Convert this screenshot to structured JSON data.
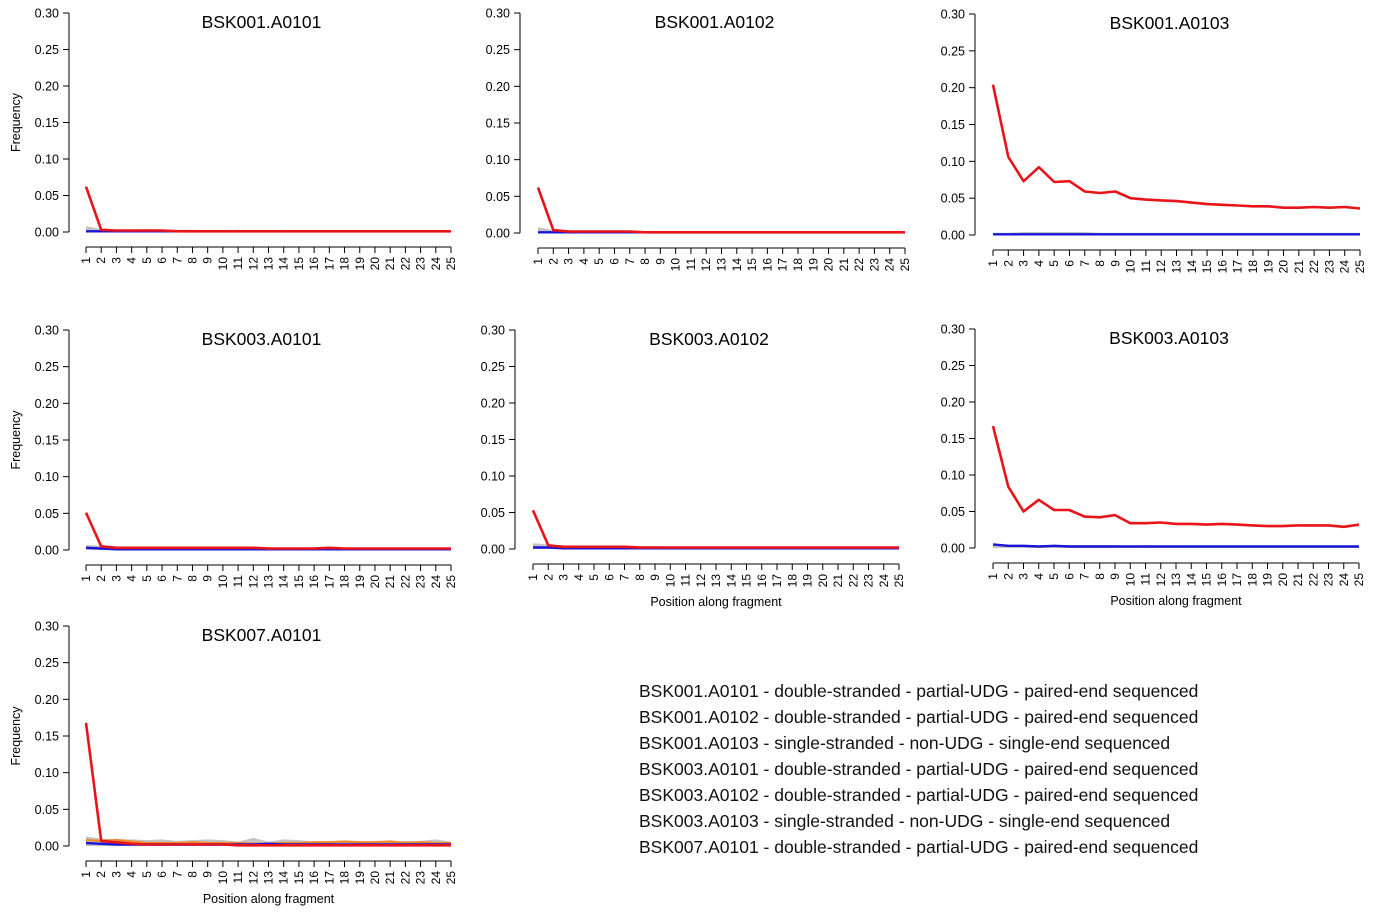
{
  "figure": {
    "ylabel": "Frequency",
    "xlabel": "Position along fragment",
    "colors": {
      "red_line": "#e8141a",
      "blue_line": "#1a14d8",
      "grey_band": "#b0b0b0",
      "orange_line": "#f08a2c",
      "purple_line": "#9b3fc0"
    }
  },
  "chart_data": [
    {
      "type": "line",
      "title": "BSK001.A0101",
      "ylabel": "Frequency",
      "xlabel": "",
      "ylim": [
        0,
        0.3
      ],
      "yticks": [
        "0.00",
        "0.05",
        "0.10",
        "0.15",
        "0.20",
        "0.25",
        "0.30"
      ],
      "x": [
        1,
        2,
        3,
        4,
        5,
        6,
        7,
        8,
        9,
        10,
        11,
        12,
        13,
        14,
        15,
        16,
        17,
        18,
        19,
        20,
        21,
        22,
        23,
        24,
        25
      ],
      "series": [
        {
          "color": "red",
          "values": [
            0.062,
            0.003,
            0.002,
            0.002,
            0.002,
            0.002,
            0.001,
            0.001,
            0.001,
            0.001,
            0.001,
            0.001,
            0.001,
            0.001,
            0.001,
            0.001,
            0.001,
            0.001,
            0.001,
            0.001,
            0.001,
            0.001,
            0.001,
            0.001,
            0.001
          ]
        },
        {
          "color": "blue",
          "values": [
            0.001,
            0.001,
            0.001,
            0.001,
            0.001,
            0.001,
            0.001,
            0.001,
            0.001,
            0.001,
            0.001,
            0.001,
            0.001,
            0.001,
            0.001,
            0.001,
            0.001,
            0.001,
            0.001,
            0.001,
            0.001,
            0.001,
            0.001,
            0.001,
            0.001
          ]
        },
        {
          "color": "grey",
          "band": true,
          "values": [
            0.008,
            0.004,
            0.003,
            0.003,
            0.004,
            0.003,
            0.003,
            0.003,
            0.002,
            0.002,
            0.003,
            0.002,
            0.002,
            0.003,
            0.002,
            0.002,
            0.002,
            0.002,
            0.002,
            0.002,
            0.002,
            0.002,
            0.002,
            0.002,
            0.002
          ]
        }
      ]
    },
    {
      "type": "line",
      "title": "BSK001.A0102",
      "ylabel": "",
      "xlabel": "",
      "ylim": [
        0,
        0.3
      ],
      "yticks": [
        "0.00",
        "0.05",
        "0.10",
        "0.15",
        "0.20",
        "0.25",
        "0.30"
      ],
      "x": [
        1,
        2,
        3,
        4,
        5,
        6,
        7,
        8,
        9,
        10,
        11,
        12,
        13,
        14,
        15,
        16,
        17,
        18,
        19,
        20,
        21,
        22,
        23,
        24,
        25
      ],
      "series": [
        {
          "color": "red",
          "values": [
            0.062,
            0.004,
            0.002,
            0.002,
            0.002,
            0.002,
            0.002,
            0.001,
            0.001,
            0.001,
            0.001,
            0.001,
            0.001,
            0.001,
            0.001,
            0.001,
            0.001,
            0.001,
            0.001,
            0.001,
            0.001,
            0.001,
            0.001,
            0.001,
            0.001
          ]
        },
        {
          "color": "blue",
          "values": [
            0.001,
            0.001,
            0.001,
            0.001,
            0.001,
            0.001,
            0.001,
            0.001,
            0.001,
            0.001,
            0.001,
            0.001,
            0.001,
            0.001,
            0.001,
            0.001,
            0.001,
            0.001,
            0.001,
            0.001,
            0.001,
            0.001,
            0.001,
            0.001,
            0.001
          ]
        },
        {
          "color": "grey",
          "band": true,
          "values": [
            0.008,
            0.004,
            0.003,
            0.003,
            0.003,
            0.003,
            0.003,
            0.002,
            0.002,
            0.002,
            0.002,
            0.002,
            0.002,
            0.002,
            0.002,
            0.002,
            0.002,
            0.002,
            0.002,
            0.002,
            0.002,
            0.002,
            0.002,
            0.002,
            0.002
          ]
        }
      ]
    },
    {
      "type": "line",
      "title": "BSK001.A0103",
      "ylabel": "",
      "xlabel": "",
      "ylim": [
        0,
        0.3
      ],
      "yticks": [
        "0.00",
        "0.05",
        "0.10",
        "0.15",
        "0.20",
        "0.25",
        "0.30"
      ],
      "x": [
        1,
        2,
        3,
        4,
        5,
        6,
        7,
        8,
        9,
        10,
        11,
        12,
        13,
        14,
        15,
        16,
        17,
        18,
        19,
        20,
        21,
        22,
        23,
        24,
        25
      ],
      "series": [
        {
          "color": "red",
          "values": [
            0.204,
            0.106,
            0.073,
            0.092,
            0.072,
            0.073,
            0.059,
            0.057,
            0.059,
            0.05,
            0.048,
            0.047,
            0.046,
            0.044,
            0.042,
            0.041,
            0.04,
            0.039,
            0.039,
            0.037,
            0.037,
            0.038,
            0.037,
            0.038,
            0.036
          ]
        },
        {
          "color": "blue",
          "values": [
            0.001,
            0.001,
            0.001,
            0.001,
            0.001,
            0.001,
            0.001,
            0.001,
            0.001,
            0.001,
            0.001,
            0.001,
            0.001,
            0.001,
            0.001,
            0.001,
            0.001,
            0.001,
            0.001,
            0.001,
            0.001,
            0.001,
            0.001,
            0.001,
            0.001
          ]
        },
        {
          "color": "grey",
          "band": true,
          "values": [
            0.003,
            0.003,
            0.004,
            0.004,
            0.004,
            0.004,
            0.004,
            0.003,
            0.003,
            0.003,
            0.003,
            0.003,
            0.003,
            0.003,
            0.003,
            0.003,
            0.003,
            0.003,
            0.003,
            0.003,
            0.003,
            0.003,
            0.003,
            0.003,
            0.003
          ]
        }
      ]
    },
    {
      "type": "line",
      "title": "BSK003.A0101",
      "ylabel": "Frequency",
      "xlabel": "",
      "ylim": [
        0,
        0.3
      ],
      "yticks": [
        "0.00",
        "0.05",
        "0.10",
        "0.15",
        "0.20",
        "0.25",
        "0.30"
      ],
      "x": [
        1,
        2,
        3,
        4,
        5,
        6,
        7,
        8,
        9,
        10,
        11,
        12,
        13,
        14,
        15,
        16,
        17,
        18,
        19,
        20,
        21,
        22,
        23,
        24,
        25
      ],
      "series": [
        {
          "color": "red",
          "values": [
            0.051,
            0.005,
            0.003,
            0.003,
            0.003,
            0.003,
            0.003,
            0.003,
            0.003,
            0.003,
            0.003,
            0.003,
            0.002,
            0.002,
            0.002,
            0.002,
            0.003,
            0.002,
            0.002,
            0.002,
            0.002,
            0.002,
            0.002,
            0.002,
            0.002
          ]
        },
        {
          "color": "blue",
          "values": [
            0.003,
            0.002,
            0.001,
            0.001,
            0.001,
            0.001,
            0.001,
            0.001,
            0.001,
            0.001,
            0.001,
            0.001,
            0.001,
            0.001,
            0.001,
            0.001,
            0.001,
            0.001,
            0.001,
            0.001,
            0.001,
            0.001,
            0.001,
            0.001,
            0.001
          ]
        },
        {
          "color": "grey",
          "band": true,
          "values": [
            0.007,
            0.006,
            0.005,
            0.004,
            0.004,
            0.004,
            0.004,
            0.004,
            0.004,
            0.004,
            0.004,
            0.003,
            0.003,
            0.003,
            0.003,
            0.003,
            0.003,
            0.003,
            0.003,
            0.003,
            0.003,
            0.003,
            0.003,
            0.003,
            0.003
          ]
        }
      ]
    },
    {
      "type": "line",
      "title": "BSK003.A0102",
      "ylabel": "",
      "xlabel": "Position along fragment",
      "ylim": [
        0,
        0.3
      ],
      "yticks": [
        "0.00",
        "0.05",
        "0.10",
        "0.15",
        "0.20",
        "0.25",
        "0.30"
      ],
      "x": [
        1,
        2,
        3,
        4,
        5,
        6,
        7,
        8,
        9,
        10,
        11,
        12,
        13,
        14,
        15,
        16,
        17,
        18,
        19,
        20,
        21,
        22,
        23,
        24,
        25
      ],
      "series": [
        {
          "color": "red",
          "values": [
            0.053,
            0.005,
            0.003,
            0.003,
            0.003,
            0.003,
            0.003,
            0.002,
            0.002,
            0.002,
            0.002,
            0.002,
            0.002,
            0.002,
            0.002,
            0.002,
            0.002,
            0.002,
            0.002,
            0.002,
            0.002,
            0.002,
            0.002,
            0.002,
            0.002
          ]
        },
        {
          "color": "blue",
          "values": [
            0.002,
            0.002,
            0.001,
            0.001,
            0.001,
            0.001,
            0.001,
            0.001,
            0.001,
            0.001,
            0.001,
            0.001,
            0.001,
            0.001,
            0.001,
            0.001,
            0.001,
            0.001,
            0.001,
            0.001,
            0.001,
            0.001,
            0.001,
            0.001,
            0.001
          ]
        },
        {
          "color": "grey",
          "band": true,
          "values": [
            0.008,
            0.006,
            0.005,
            0.004,
            0.004,
            0.004,
            0.004,
            0.004,
            0.004,
            0.003,
            0.003,
            0.003,
            0.003,
            0.003,
            0.003,
            0.003,
            0.003,
            0.003,
            0.003,
            0.003,
            0.003,
            0.003,
            0.003,
            0.003,
            0.003
          ]
        }
      ]
    },
    {
      "type": "line",
      "title": "BSK003.A0103",
      "ylabel": "",
      "xlabel": "Position along fragment",
      "ylim": [
        0,
        0.3
      ],
      "yticks": [
        "0.00",
        "0.05",
        "0.10",
        "0.15",
        "0.20",
        "0.25",
        "0.30"
      ],
      "x": [
        1,
        2,
        3,
        4,
        5,
        6,
        7,
        8,
        9,
        10,
        11,
        12,
        13,
        14,
        15,
        16,
        17,
        18,
        19,
        20,
        21,
        22,
        23,
        24,
        25
      ],
      "series": [
        {
          "color": "red",
          "values": [
            0.167,
            0.084,
            0.05,
            0.066,
            0.052,
            0.052,
            0.043,
            0.042,
            0.045,
            0.034,
            0.034,
            0.035,
            0.033,
            0.033,
            0.032,
            0.033,
            0.032,
            0.031,
            0.03,
            0.03,
            0.031,
            0.031,
            0.031,
            0.029,
            0.032
          ]
        },
        {
          "color": "blue",
          "values": [
            0.005,
            0.003,
            0.003,
            0.002,
            0.003,
            0.002,
            0.002,
            0.002,
            0.002,
            0.002,
            0.002,
            0.002,
            0.002,
            0.002,
            0.002,
            0.002,
            0.002,
            0.002,
            0.002,
            0.002,
            0.002,
            0.002,
            0.002,
            0.002,
            0.002
          ]
        },
        {
          "color": "grey",
          "band": true,
          "values": [
            0.004,
            0.004,
            0.004,
            0.004,
            0.004,
            0.004,
            0.004,
            0.004,
            0.004,
            0.003,
            0.004,
            0.003,
            0.003,
            0.003,
            0.003,
            0.003,
            0.003,
            0.003,
            0.003,
            0.003,
            0.003,
            0.003,
            0.003,
            0.003,
            0.003
          ]
        }
      ]
    },
    {
      "type": "line",
      "title": "BSK007.A0101",
      "ylabel": "Frequency",
      "xlabel": "Position along fragment",
      "ylim": [
        0,
        0.3
      ],
      "yticks": [
        "0.00",
        "0.05",
        "0.10",
        "0.15",
        "0.20",
        "0.25",
        "0.30"
      ],
      "x": [
        1,
        2,
        3,
        4,
        5,
        6,
        7,
        8,
        9,
        10,
        11,
        12,
        13,
        14,
        15,
        16,
        17,
        18,
        19,
        20,
        21,
        22,
        23,
        24,
        25
      ],
      "series": [
        {
          "color": "red",
          "values": [
            0.168,
            0.007,
            0.005,
            0.003,
            0.002,
            0.002,
            0.002,
            0.002,
            0.002,
            0.002,
            0.001,
            0.001,
            0.001,
            0.001,
            0.001,
            0.001,
            0.001,
            0.001,
            0.001,
            0.001,
            0.001,
            0.001,
            0.001,
            0.001,
            0.001
          ]
        },
        {
          "color": "blue",
          "values": [
            0.004,
            0.003,
            0.002,
            0.002,
            0.002,
            0.002,
            0.002,
            0.002,
            0.002,
            0.002,
            0.002,
            0.002,
            0.003,
            0.002,
            0.002,
            0.002,
            0.002,
            0.002,
            0.002,
            0.002,
            0.002,
            0.002,
            0.002,
            0.002,
            0.002
          ]
        },
        {
          "color": "orange",
          "values": [
            0.008,
            0.007,
            0.008,
            0.006,
            0.004,
            0.004,
            0.004,
            0.005,
            0.004,
            0.004,
            0.004,
            0.003,
            0.003,
            0.004,
            0.004,
            0.005,
            0.005,
            0.006,
            0.005,
            0.005,
            0.006,
            0.004,
            0.005,
            0.004,
            0.004
          ]
        },
        {
          "color": "grey",
          "band": true,
          "values": [
            0.013,
            0.01,
            0.009,
            0.009,
            0.008,
            0.009,
            0.007,
            0.008,
            0.009,
            0.008,
            0.006,
            0.011,
            0.006,
            0.009,
            0.008,
            0.006,
            0.007,
            0.007,
            0.006,
            0.007,
            0.006,
            0.007,
            0.007,
            0.009,
            0.006
          ]
        }
      ]
    }
  ],
  "legend": [
    "BSK001.A0101 - double-stranded - partial-UDG - paired-end sequenced",
    "BSK001.A0102 - double-stranded - partial-UDG - paired-end sequenced",
    "BSK001.A0103 - single-stranded - non-UDG - single-end sequenced",
    "BSK003.A0101 - double-stranded - partial-UDG - paired-end sequenced",
    "BSK003.A0102 - double-stranded - partial-UDG - paired-end sequenced",
    "BSK003.A0103 - single-stranded - non-UDG - single-end sequenced",
    "BSK007.A0101 - double-stranded - partial-UDG - paired-end sequenced"
  ]
}
